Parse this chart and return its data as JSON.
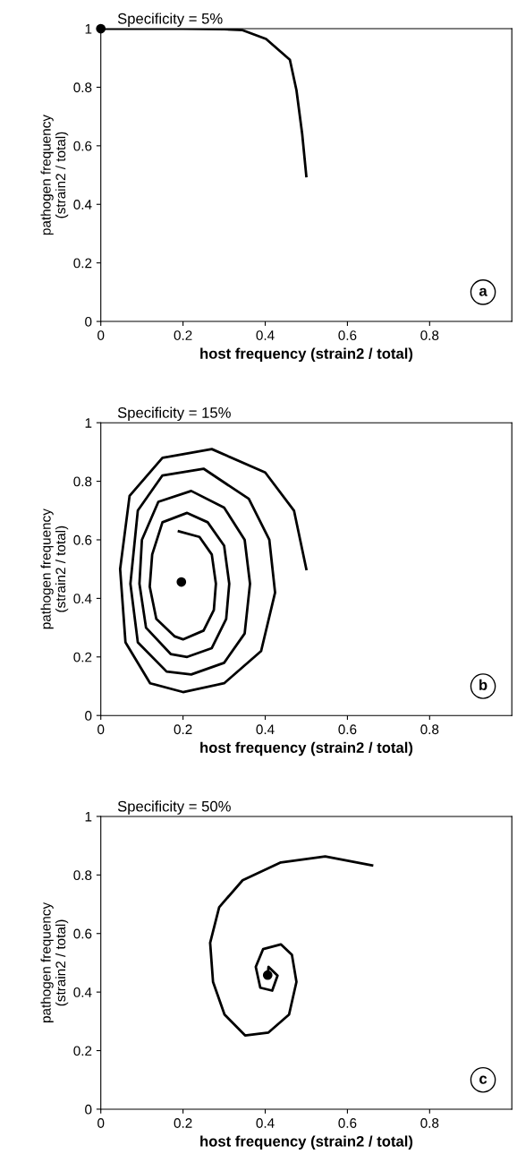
{
  "chart_data": [
    {
      "type": "line",
      "title": "Specificity = 5%",
      "xlabel": "host frequency (strain2 / total)",
      "ylabel": "pathogen frequency\n(strain2 / total)",
      "xlim": [
        0,
        1
      ],
      "ylim": [
        0,
        1
      ],
      "xticks": [
        0,
        0.2,
        0.4,
        0.6,
        0.8
      ],
      "yticks": [
        0,
        0.2,
        0.4,
        0.6,
        0.8,
        1
      ],
      "grid": false,
      "legend": false,
      "line_style": "solid",
      "annotations": [
        "a"
      ],
      "series": [
        {
          "color": "#000000",
          "marker": "none",
          "x": [
            0,
            0.2,
            0.3,
            0.345,
            0.402,
            0.46,
            0.476,
            0.49,
            0.5
          ],
          "values": [
            1,
            1,
            0.998,
            0.995,
            0.965,
            0.894,
            0.79,
            0.64,
            0.496
          ]
        },
        {
          "type": "scatter",
          "color": "#000000",
          "marker": "circle",
          "x": [
            0
          ],
          "values": [
            1
          ]
        }
      ]
    },
    {
      "type": "line",
      "title": "Specificity = 15%",
      "xlabel": "host frequency (strain2 / total)",
      "ylabel": "pathogen frequency\n(strain2 / total)",
      "xlim": [
        0,
        1
      ],
      "ylim": [
        0,
        1
      ],
      "xticks": [
        0,
        0.2,
        0.4,
        0.6,
        0.8
      ],
      "yticks": [
        0,
        0.2,
        0.4,
        0.6,
        0.8,
        1
      ],
      "grid": false,
      "legend": false,
      "line_style": "solid",
      "annotations": [
        "b"
      ],
      "series": [
        {
          "color": "#000000",
          "marker": "none",
          "x": [
            0.5,
            0.47,
            0.4,
            0.27,
            0.15,
            0.07,
            0.047,
            0.06,
            0.12,
            0.2,
            0.3,
            0.39,
            0.424,
            0.41,
            0.36,
            0.25,
            0.15,
            0.09,
            0.072,
            0.09,
            0.16,
            0.22,
            0.3,
            0.35,
            0.363,
            0.35,
            0.3,
            0.22,
            0.14,
            0.1,
            0.094,
            0.11,
            0.17,
            0.21,
            0.27,
            0.305,
            0.3125,
            0.3,
            0.26,
            0.21,
            0.15,
            0.125,
            0.119,
            0.135,
            0.18,
            0.2,
            0.25,
            0.275,
            0.28,
            0.27,
            0.24,
            0.19
          ],
          "values": [
            0.5,
            0.7,
            0.83,
            0.91,
            0.88,
            0.75,
            0.5,
            0.25,
            0.11,
            0.08,
            0.11,
            0.22,
            0.42,
            0.6,
            0.74,
            0.843,
            0.82,
            0.7,
            0.45,
            0.25,
            0.15,
            0.14,
            0.18,
            0.28,
            0.45,
            0.6,
            0.71,
            0.767,
            0.73,
            0.6,
            0.45,
            0.3,
            0.21,
            0.2,
            0.23,
            0.33,
            0.45,
            0.58,
            0.66,
            0.692,
            0.66,
            0.55,
            0.44,
            0.33,
            0.27,
            0.26,
            0.29,
            0.36,
            0.45,
            0.55,
            0.61,
            0.629
          ]
        },
        {
          "type": "scatter",
          "color": "#000000",
          "marker": "circle",
          "x": [
            0.196
          ],
          "values": [
            0.456
          ]
        }
      ]
    },
    {
      "type": "line",
      "title": "Specificity = 50%",
      "xlabel": "host frequency (strain2 / total)",
      "ylabel": "pathogen frequency\n(strain2 / total)",
      "xlim": [
        0,
        1
      ],
      "ylim": [
        0,
        1
      ],
      "xticks": [
        0,
        0.2,
        0.4,
        0.6,
        0.8
      ],
      "yticks": [
        0,
        0.2,
        0.4,
        0.6,
        0.8,
        1
      ],
      "grid": false,
      "legend": false,
      "line_style": "solid",
      "annotations": [
        "c"
      ],
      "series": [
        {
          "color": "#000000",
          "marker": "none",
          "x": [
            0.66,
            0.546,
            0.438,
            0.345,
            0.288,
            0.266,
            0.273,
            0.301,
            0.351,
            0.408,
            0.458,
            0.476,
            0.465,
            0.438,
            0.395,
            0.377,
            0.388,
            0.417,
            0.43,
            0.408,
            0.406
          ],
          "values": [
            0.833,
            0.863,
            0.843,
            0.782,
            0.69,
            0.568,
            0.435,
            0.323,
            0.252,
            0.262,
            0.323,
            0.435,
            0.527,
            0.563,
            0.547,
            0.486,
            0.415,
            0.405,
            0.456,
            0.486,
            0.458
          ]
        },
        {
          "type": "scatter",
          "color": "#000000",
          "marker": "circle",
          "x": [
            0.406
          ],
          "values": [
            0.458
          ]
        }
      ]
    }
  ]
}
